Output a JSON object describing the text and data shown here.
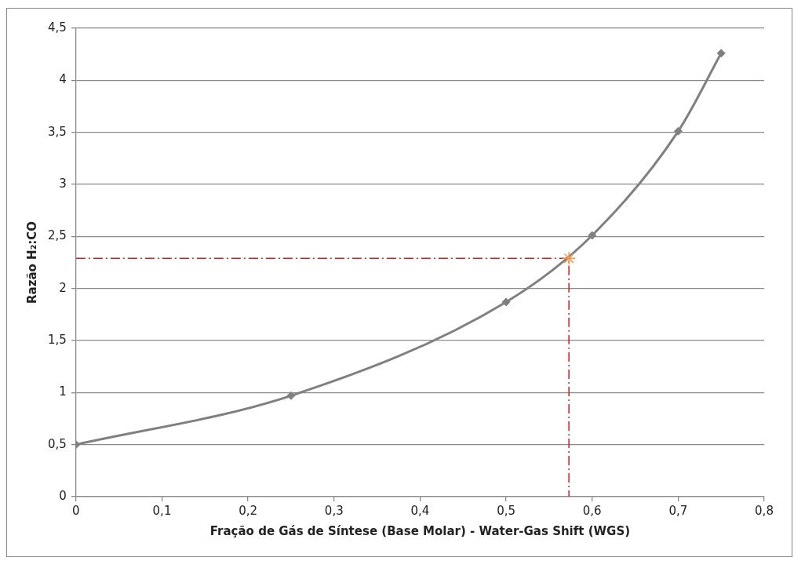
{
  "chart_data": {
    "type": "line",
    "xlabel": "Fração de Gás de Síntese (Base Molar) - Water-Gas Shift (WGS)",
    "ylabel": "Razão H₂:CO",
    "xlim": [
      0,
      0.8
    ],
    "xticks": [
      0,
      {
        "value": 0.1,
        "label": "0,1"
      },
      {
        "value": 0.2,
        "label": "0,2"
      },
      {
        "value": 0.3,
        "label": "0,3"
      },
      {
        "value": 0.4,
        "label": "0,4"
      },
      {
        "value": 0.5,
        "label": "0,5"
      },
      {
        "value": 0.6,
        "label": "0,6"
      },
      {
        "value": 0.7,
        "label": "0,7"
      },
      {
        "value": 0.8,
        "label": "0,8"
      }
    ],
    "ylim": [
      0,
      4.5
    ],
    "yticks": [
      0,
      {
        "value": 0.5,
        "label": "0,5"
      },
      1,
      {
        "value": 1.5,
        "label": "1,5"
      },
      2,
      {
        "value": 2.5,
        "label": "2,5"
      },
      3,
      {
        "value": 3.5,
        "label": "3,5"
      },
      4,
      {
        "value": 4.5,
        "label": "4,5"
      }
    ],
    "grid": "y",
    "legend": false,
    "series": [
      {
        "color": "#808080",
        "marker": "diamond",
        "line_style": "solid",
        "x": [
          0,
          0.25,
          0.5,
          0.6,
          0.7,
          0.75
        ],
        "values": [
          0.5,
          0.97,
          1.87,
          2.51,
          3.51,
          4.26
        ]
      },
      {
        "type": "line",
        "color": "#d02020",
        "marker": "none",
        "line_style": "dashed",
        "x": [
          0,
          0.573,
          0.573
        ],
        "values": [
          2.29,
          2.29,
          0
        ]
      },
      {
        "type": "scatter",
        "color": "#f79646",
        "marker": "cross",
        "x": [
          0.573
        ],
        "values": [
          2.29
        ]
      }
    ]
  }
}
